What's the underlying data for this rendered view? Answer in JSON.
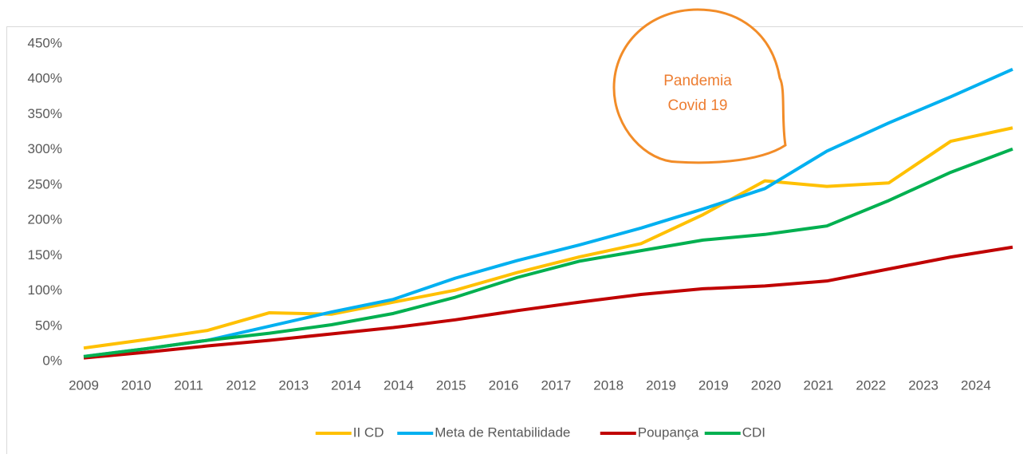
{
  "chart_data": {
    "type": "line",
    "xticks": [
      "2009",
      "2010",
      "2011",
      "2012",
      "2013",
      "2014",
      "2014",
      "2015",
      "2016",
      "2017",
      "2018",
      "2019",
      "2019",
      "2020",
      "2021",
      "2022",
      "2023",
      "2024"
    ],
    "series": [
      {
        "name": "II CD",
        "color": "#FFC000",
        "values": [
          19,
          31,
          44,
          69,
          67,
          84,
          101,
          126,
          148,
          167,
          208,
          256,
          248,
          253,
          312,
          331
        ]
      },
      {
        "name": "Meta de Rentabilidade",
        "color": "#00B0F0",
        "values": [
          7,
          18,
          30,
          50,
          70,
          88,
          118,
          143,
          165,
          189,
          216,
          245,
          298,
          338,
          375,
          414
        ]
      },
      {
        "name": "Poupança",
        "color": "#C00000",
        "values": [
          5,
          13,
          22,
          30,
          39,
          48,
          59,
          72,
          84,
          95,
          103,
          107,
          114,
          131,
          148,
          162
        ]
      },
      {
        "name": "CDI",
        "color": "#00B050",
        "values": [
          7,
          18,
          30,
          40,
          52,
          68,
          91,
          119,
          142,
          157,
          172,
          180,
          192,
          228,
          268,
          301
        ]
      }
    ],
    "ylim": [
      0,
      450
    ],
    "yticks": [
      {
        "value": 0,
        "label": "0%"
      },
      {
        "value": 50,
        "label": "50%"
      },
      {
        "value": 100,
        "label": "100%"
      },
      {
        "value": 150,
        "label": "150%"
      },
      {
        "value": 200,
        "label": "200%"
      },
      {
        "value": 250,
        "label": "250%"
      },
      {
        "value": 300,
        "label": "300%"
      },
      {
        "value": 350,
        "label": "350%"
      },
      {
        "value": 400,
        "label": "400%"
      },
      {
        "value": 450,
        "label": "450%"
      }
    ],
    "annotation": [
      "Pandemia",
      "Covid 19"
    ],
    "legend": "bottom"
  }
}
